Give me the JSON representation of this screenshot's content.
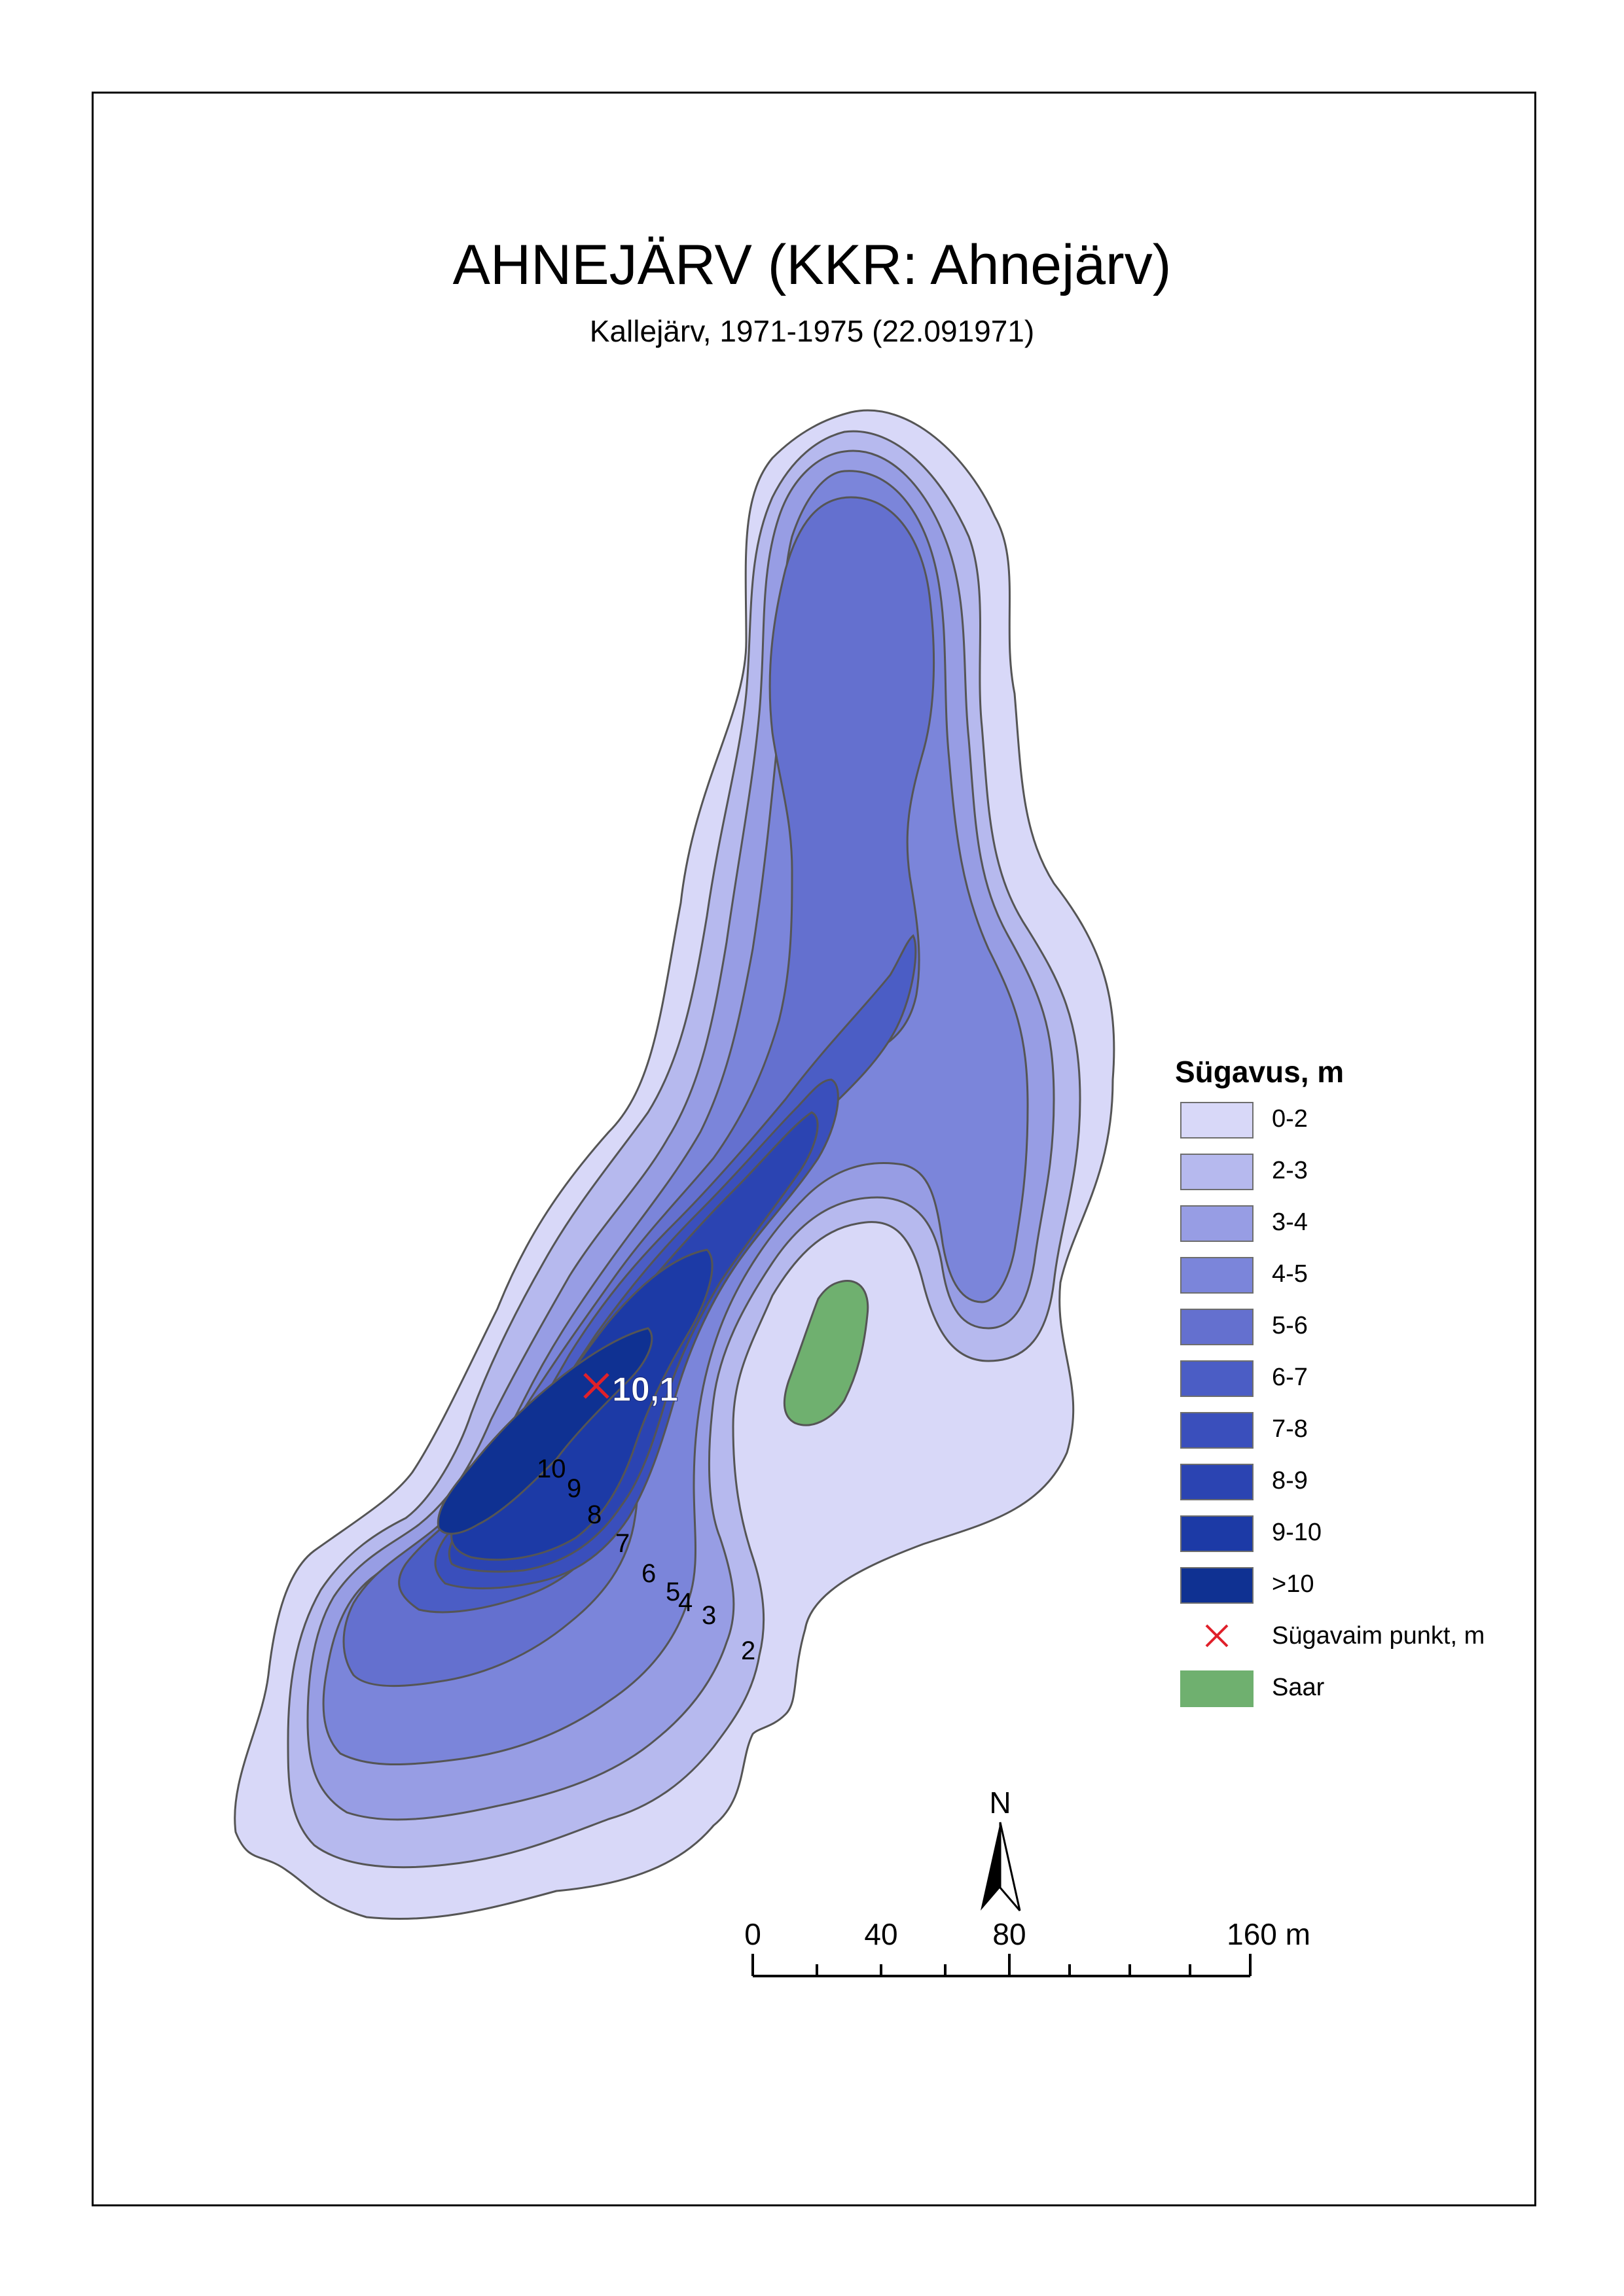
{
  "map": {
    "title": "AHNEJÄRV (KKR: Ahnejärv)",
    "subtitle": "Kallejärv, 1971-1975 (22.091971)",
    "deepest_point_label": "10,1",
    "contour_labels": [
      "10",
      "9",
      "8",
      "7",
      "6",
      "5",
      "4",
      "3",
      "2"
    ]
  },
  "legend": {
    "title": "Sügavus, m",
    "items": [
      {
        "label": "0-2",
        "color": "#d8d8f8"
      },
      {
        "label": "2-3",
        "color": "#b6b9ee"
      },
      {
        "label": "3-4",
        "color": "#979de4"
      },
      {
        "label": "4-5",
        "color": "#7b85da"
      },
      {
        "label": "5-6",
        "color": "#6470cf"
      },
      {
        "label": "6-7",
        "color": "#4b5dc5"
      },
      {
        "label": "7-8",
        "color": "#3a4fbc"
      },
      {
        "label": "8-9",
        "color": "#2b44b2"
      },
      {
        "label": "9-10",
        "color": "#1c3aa6"
      },
      {
        "label": ">10",
        "color": "#0f3192"
      }
    ],
    "deepest_point": {
      "label": "Sügavaim punkt, m",
      "color": "#e0202a"
    },
    "island": {
      "label": "Saar",
      "color": "#6fb06f"
    }
  },
  "scale": {
    "labels": [
      "0",
      "40",
      "80",
      "160 m"
    ]
  },
  "north_arrow": {
    "label": "N"
  }
}
